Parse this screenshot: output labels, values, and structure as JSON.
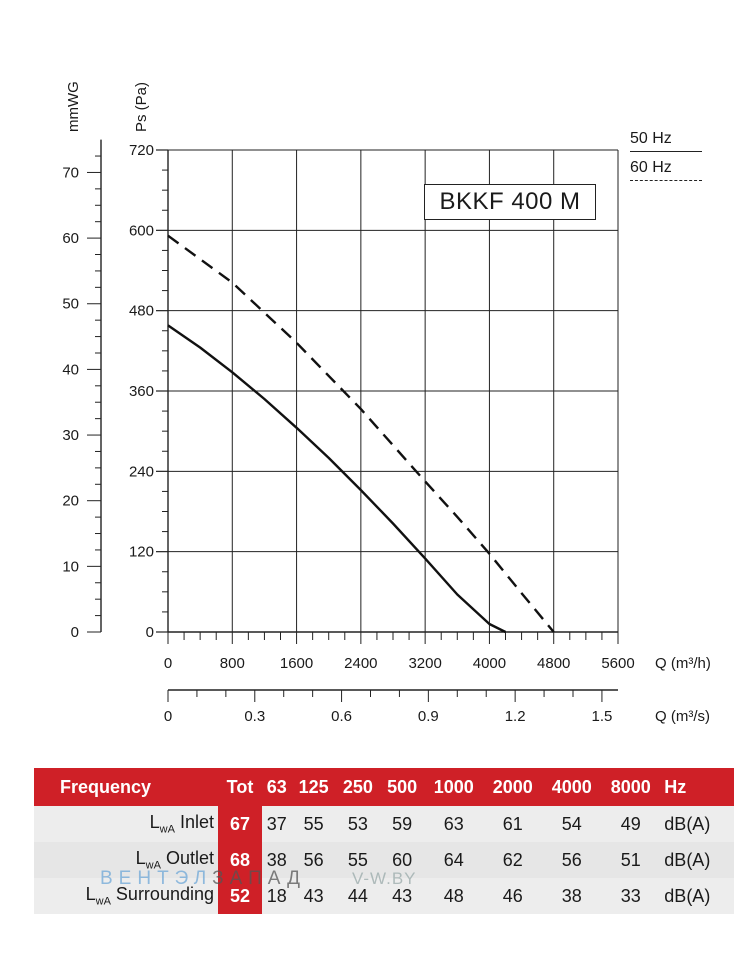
{
  "chart_data": {
    "type": "line",
    "model": "BKKF 400 M",
    "x": {
      "label": "Q (m³/h)",
      "ticks": [
        0,
        800,
        1600,
        2400,
        3200,
        4000,
        4800,
        5600
      ],
      "range": [
        0,
        5600
      ]
    },
    "x2": {
      "label": "Q (m³/s)",
      "ticks": [
        "0",
        "0.3",
        "0.6",
        "0.9",
        "1.2",
        "1.5"
      ]
    },
    "y": {
      "label": "Ps (Pa)",
      "ticks": [
        0,
        120,
        240,
        360,
        480,
        600,
        720
      ],
      "range": [
        0,
        720
      ]
    },
    "y2": {
      "label": "mmWG",
      "ticks": [
        0,
        10,
        20,
        30,
        40,
        50,
        60,
        70
      ]
    },
    "legend": {
      "position": "top-right",
      "entries": [
        "50 Hz",
        "60 Hz"
      ]
    },
    "grid": true,
    "series": [
      {
        "name": "50 Hz",
        "style": "solid",
        "x": [
          0,
          400,
          800,
          1200,
          1600,
          2000,
          2400,
          2800,
          3200,
          3600,
          4000,
          4200
        ],
        "y": [
          458,
          425,
          388,
          348,
          305,
          260,
          212,
          162,
          110,
          56,
          12,
          0
        ]
      },
      {
        "name": "60 Hz",
        "style": "dashed",
        "x": [
          0,
          800,
          1600,
          2400,
          3200,
          3600,
          4000,
          4400,
          4800
        ],
        "y": [
          592,
          522,
          432,
          333,
          225,
          172,
          117,
          58,
          0
        ]
      }
    ]
  },
  "noise_table": {
    "header": {
      "label": "Frequency",
      "tot": "Tot",
      "bands": [
        "63",
        "125",
        "250",
        "500",
        "1000",
        "2000",
        "4000",
        "8000"
      ],
      "unit": "Hz"
    },
    "rows": [
      {
        "prefix": "L",
        "sub": "wA",
        "label": "Inlet",
        "tot": "67",
        "values": [
          "37",
          "55",
          "53",
          "59",
          "63",
          "61",
          "54",
          "49"
        ],
        "unit": "dB(A)"
      },
      {
        "prefix": "L",
        "sub": "wA",
        "label": "Outlet",
        "tot": "68",
        "values": [
          "38",
          "56",
          "55",
          "60",
          "64",
          "62",
          "56",
          "51"
        ],
        "unit": "dB(A)"
      },
      {
        "prefix": "L",
        "sub": "wA",
        "label": "Surrounding",
        "tot": "52",
        "values": [
          "18",
          "43",
          "44",
          "43",
          "48",
          "46",
          "38",
          "33"
        ],
        "unit": "dB(A)"
      }
    ]
  },
  "watermark": {
    "part1": "ВЕНТЭЛ",
    "part2": "ЗАПАД",
    "part3": "V-W.BY"
  },
  "colors": {
    "accent": "#cf2027",
    "table_bg": "#e6e6e6"
  }
}
